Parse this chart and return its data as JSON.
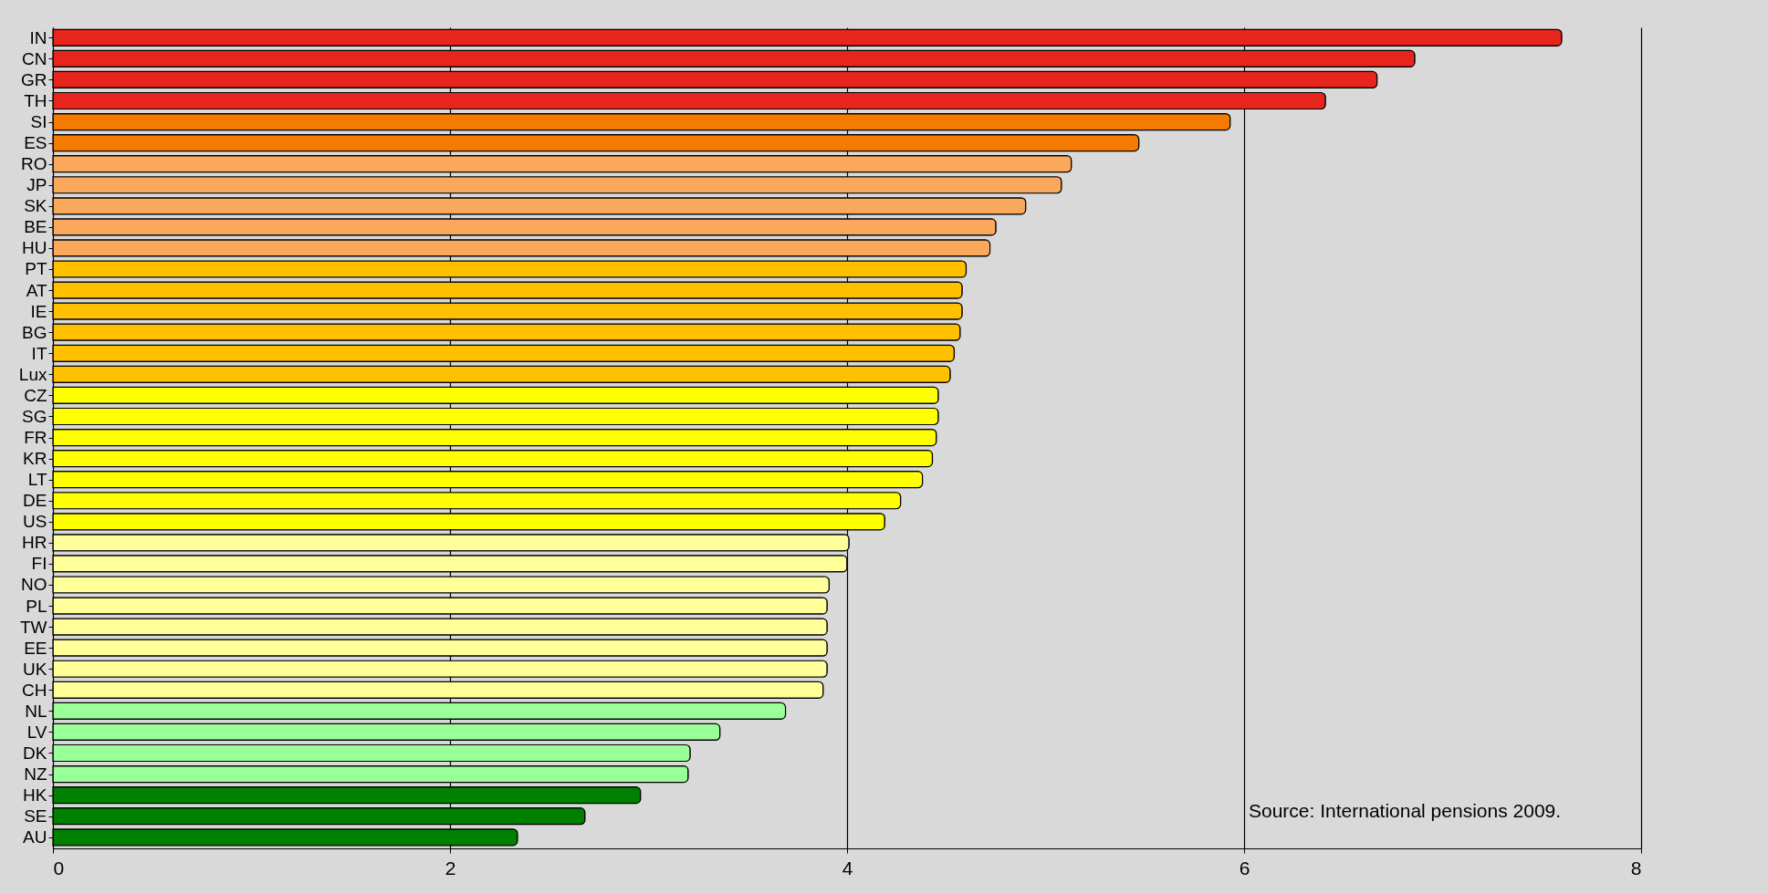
{
  "chart_data": {
    "type": "bar",
    "orientation": "horizontal",
    "categories": [
      "IN",
      "CN",
      "GR",
      "TH",
      "SI",
      "ES",
      "RO",
      "JP",
      "SK",
      "BE",
      "HU",
      "PT",
      "AT",
      "IE",
      "BG",
      "IT",
      "Lux",
      "CZ",
      "SG",
      "FR",
      "KR",
      "LT",
      "DE",
      "US",
      "HR",
      "FI",
      "NO",
      "PL",
      "TW",
      "EE",
      "UK",
      "CH",
      "NL",
      "LV",
      "DK",
      "NZ",
      "HK",
      "SE",
      "AU"
    ],
    "values": [
      7.6,
      6.86,
      6.67,
      6.41,
      5.93,
      5.47,
      5.13,
      5.08,
      4.9,
      4.75,
      4.72,
      4.6,
      4.58,
      4.58,
      4.57,
      4.54,
      4.52,
      4.46,
      4.46,
      4.45,
      4.43,
      4.38,
      4.27,
      4.19,
      4.01,
      4.0,
      3.91,
      3.9,
      3.9,
      3.9,
      3.9,
      3.88,
      3.69,
      3.36,
      3.21,
      3.2,
      2.96,
      2.68,
      2.34
    ],
    "colors": [
      "#e8251c",
      "#e8251c",
      "#e8251c",
      "#e8251c",
      "#f57a00",
      "#f57a00",
      "#f9a85c",
      "#f9a85c",
      "#f9a85c",
      "#f9a85c",
      "#f9a85c",
      "#ffc000",
      "#ffc000",
      "#ffc000",
      "#ffc000",
      "#ffc000",
      "#ffc000",
      "#ffff00",
      "#ffff00",
      "#ffff00",
      "#ffff00",
      "#ffff00",
      "#ffff00",
      "#ffff00",
      "#ffff99",
      "#ffff99",
      "#ffff99",
      "#ffff99",
      "#ffff99",
      "#ffff99",
      "#ffff99",
      "#ffff99",
      "#99ff99",
      "#99ff99",
      "#99ff99",
      "#99ff99",
      "#008000",
      "#008000",
      "#008000"
    ],
    "xlim": [
      0,
      8
    ],
    "xticks": [
      0,
      2,
      4,
      6,
      8
    ],
    "grid": "x",
    "annotations": [
      "Source: International pensions 2009."
    ]
  }
}
